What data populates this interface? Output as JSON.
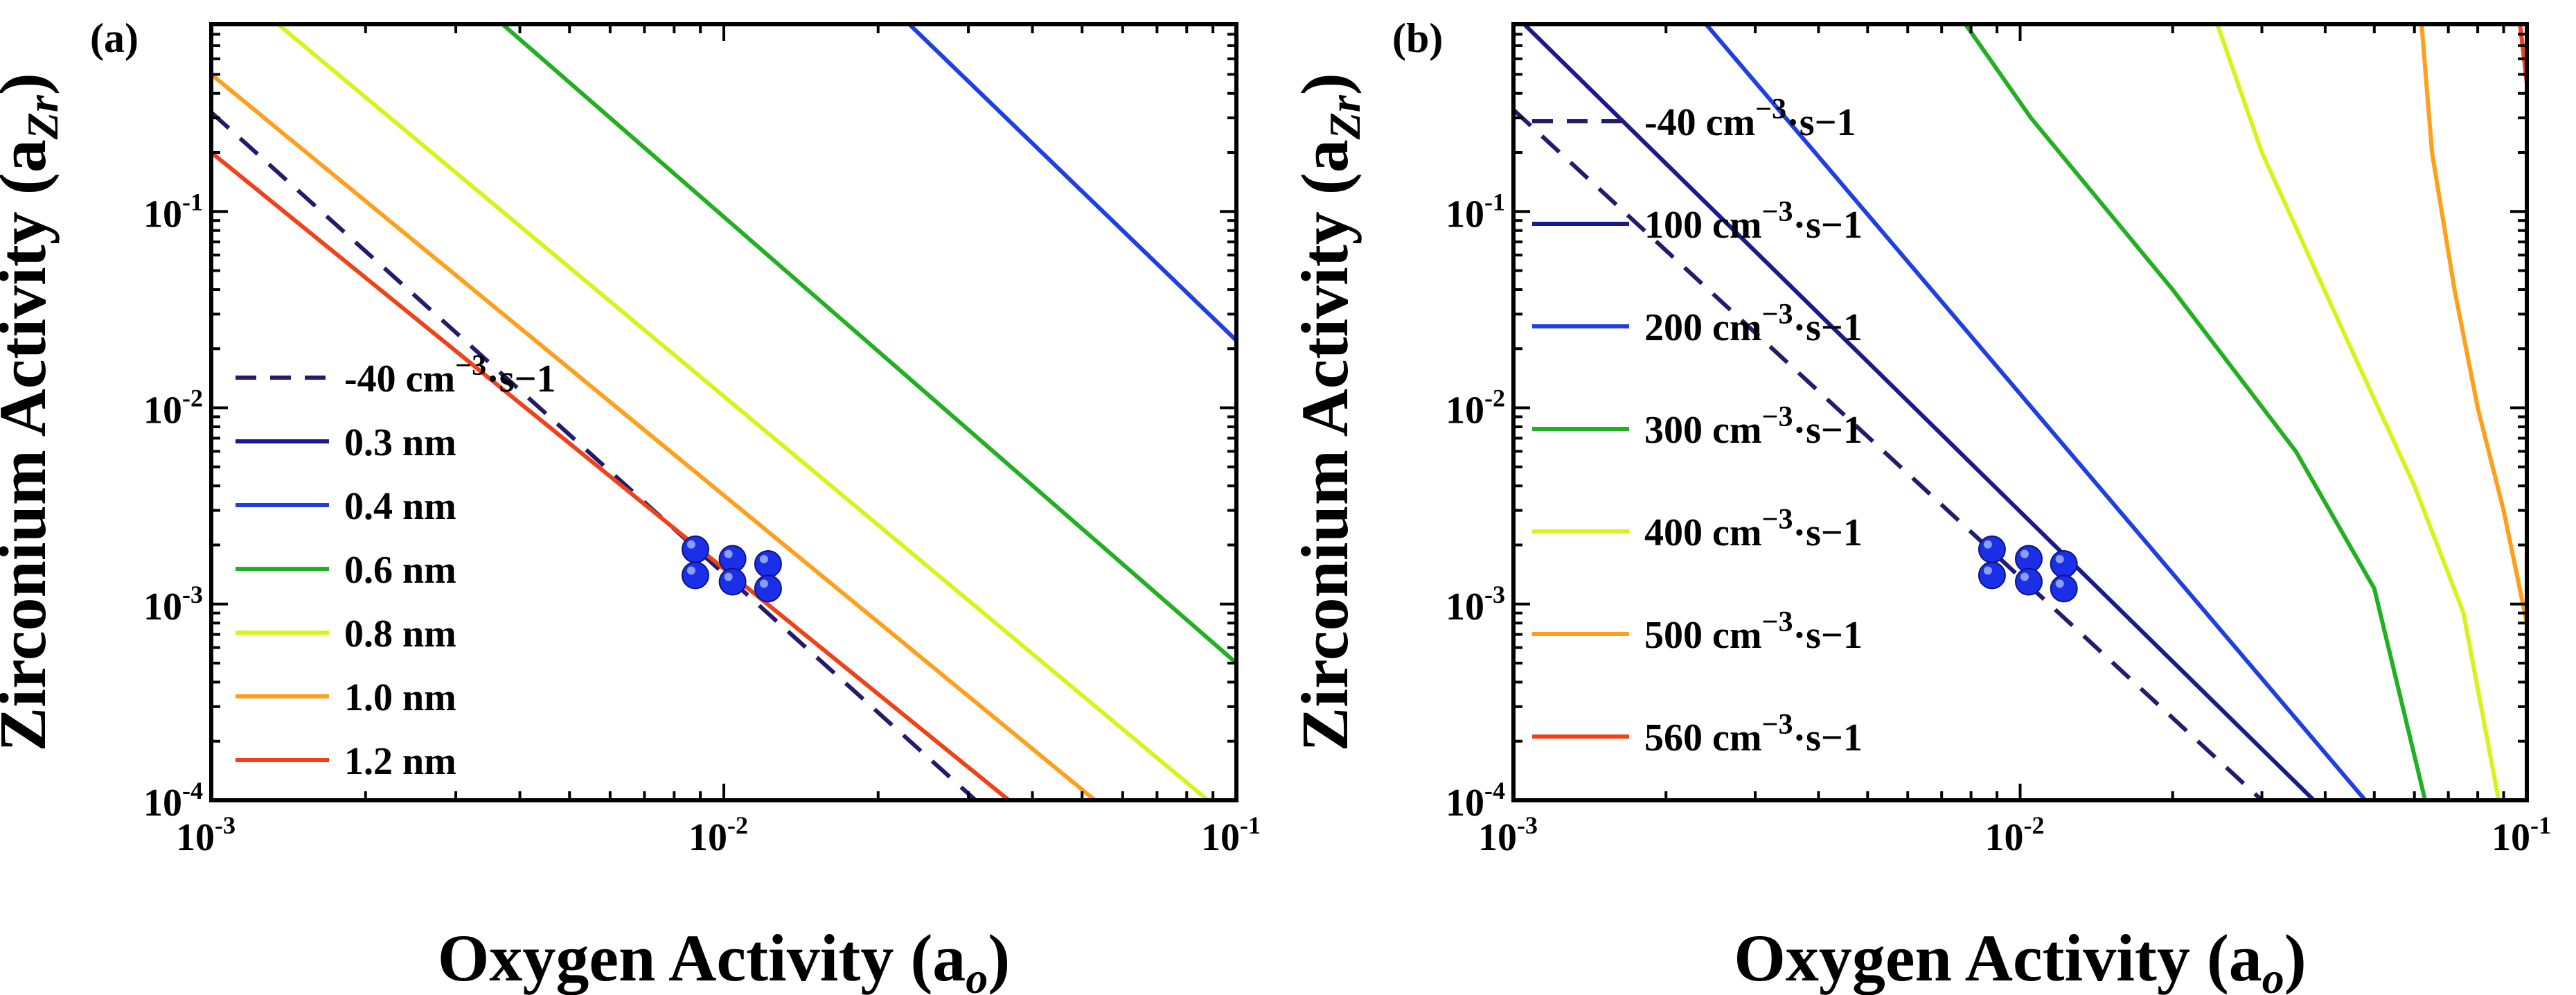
{
  "colors": {
    "dashed": "#231b6b",
    "navy": "#1a1a8c",
    "blue": "#1f3fe0",
    "green": "#22b022",
    "yellow": "#d8f21a",
    "orange": "#ff9f1a",
    "red": "#f0421a",
    "marker": "#1b2fe8"
  },
  "chart_data": [
    {
      "type": "line",
      "panel_label": "(a)",
      "xlabel": "Oxygen Activity (a",
      "xlabel_sub": "o",
      "xlabel_end": ")",
      "ylabel": "Zirconium Activity (a",
      "ylabel_sub": "Zr",
      "ylabel_end": ")",
      "x_scale": "log",
      "y_scale": "log",
      "xlim": [
        0.001,
        0.1
      ],
      "ylim": [
        0.0001,
        0.9
      ],
      "x_ticks": [
        {
          "base": "10",
          "exp": "-3"
        },
        {
          "base": "10",
          "exp": "-2"
        },
        {
          "base": "10",
          "exp": "-1"
        }
      ],
      "y_ticks": [
        {
          "base": "10",
          "exp": "-4"
        },
        {
          "base": "10",
          "exp": "-3"
        },
        {
          "base": "10",
          "exp": "-2"
        },
        {
          "base": "10",
          "exp": "-1"
        }
      ],
      "legend_position": "lower-left",
      "series": [
        {
          "name": "-40 cm",
          "name_sup": "−3",
          "name_end": "·s−1",
          "color": "dashed",
          "dashed": true,
          "x": [
            0.001,
            0.031
          ],
          "y": [
            0.32,
            0.0001
          ]
        },
        {
          "name": "0.3 nm",
          "color": "navy",
          "x": [],
          "y": []
        },
        {
          "name": "0.4 nm",
          "color": "blue",
          "x": [
            0.023,
            0.1
          ],
          "y": [
            0.9,
            0.022
          ]
        },
        {
          "name": "0.6 nm",
          "color": "green",
          "x": [
            0.0037,
            0.1
          ],
          "y": [
            0.9,
            0.0005
          ]
        },
        {
          "name": "0.8 nm",
          "color": "yellow",
          "x": [
            0.00135,
            0.088
          ],
          "y": [
            0.9,
            0.0001
          ]
        },
        {
          "name": "1.0 nm",
          "color": "orange",
          "x": [
            0.001,
            0.053
          ],
          "y": [
            0.5,
            0.0001
          ]
        },
        {
          "name": "1.2 nm",
          "color": "red",
          "x": [
            0.001,
            0.036
          ],
          "y": [
            0.2,
            0.0001
          ]
        }
      ],
      "markers": {
        "x": [
          0.0088,
          0.0088,
          0.0104,
          0.0104,
          0.0122,
          0.0122
        ],
        "y": [
          0.0019,
          0.0014,
          0.0017,
          0.0013,
          0.0016,
          0.0012
        ]
      }
    },
    {
      "type": "line",
      "panel_label": "(b)",
      "xlabel": "Oxygen Activity (a",
      "xlabel_sub": "o",
      "xlabel_end": ")",
      "ylabel": "Zirconium Activity (a",
      "ylabel_sub": "Zr",
      "ylabel_end": ")",
      "x_scale": "log",
      "y_scale": "log",
      "xlim": [
        0.001,
        0.1
      ],
      "ylim": [
        0.0001,
        0.9
      ],
      "x_ticks": [
        {
          "base": "10",
          "exp": "-3"
        },
        {
          "base": "10",
          "exp": "-2"
        },
        {
          "base": "10",
          "exp": "-1"
        }
      ],
      "y_ticks": [
        {
          "base": "10",
          "exp": "-4"
        },
        {
          "base": "10",
          "exp": "-3"
        },
        {
          "base": "10",
          "exp": "-2"
        },
        {
          "base": "10",
          "exp": "-1"
        }
      ],
      "legend_position": "left",
      "series": [
        {
          "name": "-40 cm",
          "name_sup": "−3",
          "name_end": "·s−1",
          "color": "dashed",
          "dashed": true,
          "x": [
            0.001,
            0.03
          ],
          "y": [
            0.33,
            0.0001
          ]
        },
        {
          "name": "100 cm",
          "name_sup": "−3",
          "name_end": "·s−1",
          "color": "navy",
          "x": [
            0.00105,
            0.038
          ],
          "y": [
            0.9,
            0.0001
          ]
        },
        {
          "name": "200 cm",
          "name_sup": "−3",
          "name_end": "·s−1",
          "color": "blue",
          "x": [
            0.0024,
            0.048
          ],
          "y": [
            0.9,
            0.0001
          ]
        },
        {
          "name": "300 cm",
          "name_sup": "−3",
          "name_end": "·s−1",
          "color": "green",
          "x": [
            0.0078,
            0.0105,
            0.02,
            0.035,
            0.05,
            0.063
          ],
          "y": [
            0.9,
            0.3,
            0.04,
            0.006,
            0.0012,
            0.0001
          ]
        },
        {
          "name": "400 cm",
          "name_sup": "−3",
          "name_end": "·s−1",
          "color": "yellow",
          "x": [
            0.0245,
            0.03,
            0.045,
            0.06,
            0.075,
            0.088
          ],
          "y": [
            0.9,
            0.2,
            0.02,
            0.004,
            0.0009,
            0.0001
          ]
        },
        {
          "name": "500 cm",
          "name_sup": "−3",
          "name_end": "·s−1",
          "color": "orange",
          "x": [
            0.062,
            0.065,
            0.072,
            0.08,
            0.09,
            0.1
          ],
          "y": [
            0.9,
            0.2,
            0.04,
            0.01,
            0.003,
            0.0008
          ]
        },
        {
          "name": "560 cm",
          "name_sup": "−3",
          "name_end": "·s−1",
          "color": "red",
          "x": [
            0.097,
            0.1
          ],
          "y": [
            0.9,
            0.45
          ]
        }
      ],
      "markers": {
        "x": [
          0.0088,
          0.0088,
          0.0104,
          0.0104,
          0.0122,
          0.0122
        ],
        "y": [
          0.0019,
          0.0014,
          0.0017,
          0.0013,
          0.0016,
          0.0012
        ]
      }
    }
  ]
}
